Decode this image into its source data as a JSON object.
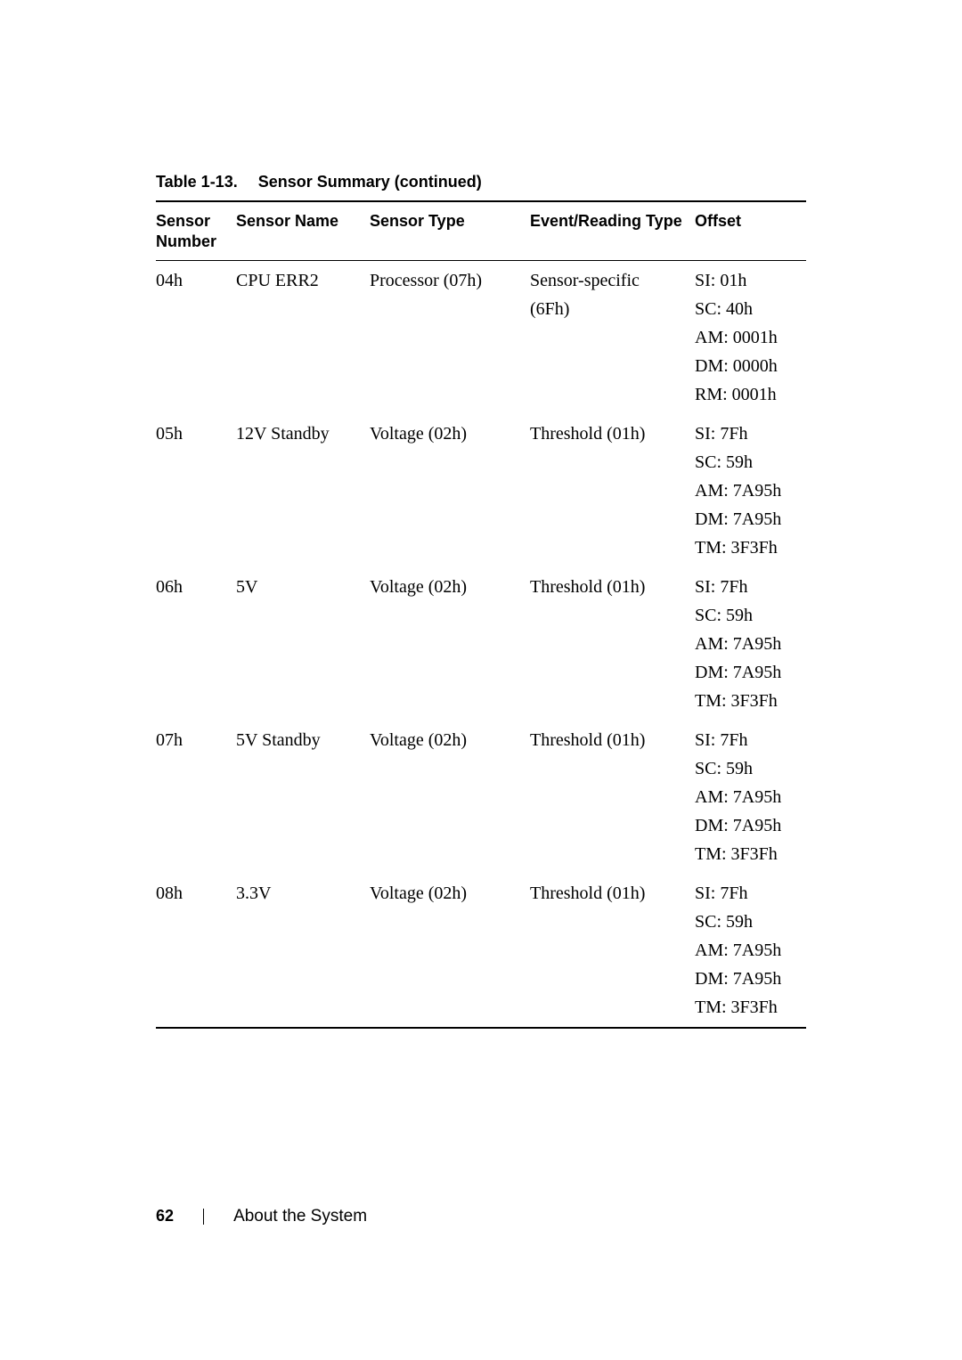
{
  "caption": {
    "label": "Table 1-13.",
    "title": "Sensor Summary (continued)"
  },
  "columns": {
    "c0": "Sensor Number",
    "c1": "Sensor Name",
    "c2": "Sensor Type",
    "c3": "Event/Reading Type",
    "c4": "Offset"
  },
  "rows": [
    {
      "num": "04h",
      "name": "CPU ERR2",
      "type": "Processor (07h)",
      "event_l1": "Sensor-specific",
      "event_l2": "(6Fh)",
      "offsets": [
        "SI: 01h",
        "SC: 40h",
        "AM: 0001h",
        "DM: 0000h",
        "RM: 0001h"
      ]
    },
    {
      "num": "05h",
      "name": "12V Standby",
      "type": "Voltage (02h)",
      "event_l1": "Threshold (01h)",
      "event_l2": "",
      "offsets": [
        "SI: 7Fh",
        "SC: 59h",
        "AM: 7A95h",
        "DM: 7A95h",
        "TM: 3F3Fh"
      ]
    },
    {
      "num": "06h",
      "name": "5V",
      "type": "Voltage (02h)",
      "event_l1": "Threshold (01h)",
      "event_l2": "",
      "offsets": [
        "SI: 7Fh",
        "SC: 59h",
        "AM: 7A95h",
        "DM: 7A95h",
        "TM: 3F3Fh"
      ]
    },
    {
      "num": "07h",
      "name": "5V Standby",
      "type": "Voltage (02h)",
      "event_l1": "Threshold (01h)",
      "event_l2": "",
      "offsets": [
        "SI: 7Fh",
        "SC: 59h",
        "AM: 7A95h",
        "DM: 7A95h",
        "TM: 3F3Fh"
      ]
    },
    {
      "num": "08h",
      "name": "3.3V",
      "type": "Voltage (02h)",
      "event_l1": "Threshold (01h)",
      "event_l2": "",
      "offsets": [
        "SI: 7Fh",
        "SC: 59h",
        "AM: 7A95h",
        "DM: 7A95h",
        "TM: 3F3Fh"
      ]
    }
  ],
  "footer": {
    "page": "62",
    "section": "About the System"
  }
}
